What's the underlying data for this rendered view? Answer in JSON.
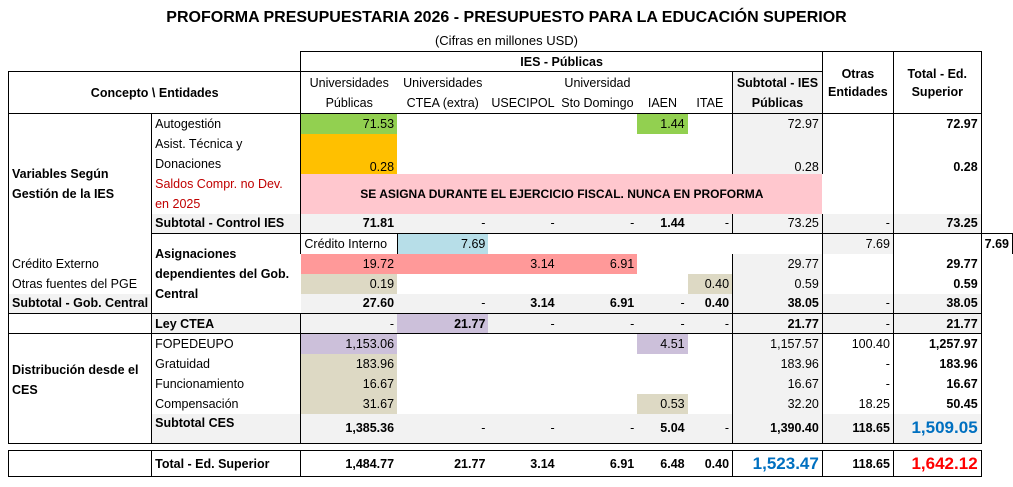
{
  "title": "PROFORMA PRESUPUESTARIA 2026 - PRESUPUESTO PARA LA EDUCACIÓN SUPERIOR",
  "subtitle": "(Cifras en millones USD)",
  "headers": {
    "group_ies": "IES - Públicas",
    "concepto": "Concepto \\ Entidades",
    "univ_publicas": "Universidades Públicas",
    "univ_ctea": "Universidades CTEA (extra)",
    "usecipol": "USECIPOL",
    "univ_sto": "Universidad Sto Domingo",
    "iaen": "IAEN",
    "itae": "ITAE",
    "subtotal_ies": "Subtotal - IES Públicas",
    "otras": "Otras Entidades",
    "total": "Total - Ed. Superior"
  },
  "groups": {
    "g1": "Variables Según Gestión de la IES",
    "g2": "Asignaciones dependientes del Gob. Central",
    "g4": "Distribución desde el CES"
  },
  "rows": {
    "autogestion": {
      "label": "Autogestión",
      "univ": "71.53",
      "iaen": "1.44",
      "sub": "72.97",
      "total": "72.97"
    },
    "asist": {
      "label": "Asist. Técnica y Donaciones",
      "univ": "0.28",
      "sub": "0.28",
      "total": "0.28"
    },
    "saldos": {
      "label": "Saldos Compr. no Dev. en 2025",
      "note": "SE ASIGNA DURANTE EL EJERCICIO FISCAL. NUNCA EN PROFORMA"
    },
    "sub_control": {
      "label": "Subtotal - Control IES",
      "univ": "71.81",
      "ctea": "-",
      "usec": "-",
      "sto": "-",
      "iaen": "1.44",
      "itae": "-",
      "sub": "73.25",
      "otras": "-",
      "total": "73.25"
    },
    "credito_int": {
      "label": "Crédito Interno",
      "univ": "7.69",
      "sub": "7.69",
      "total": "7.69"
    },
    "credito_ext": {
      "label": "Crédito Externo",
      "univ": "19.72",
      "usec": "3.14",
      "sto": "6.91",
      "sub": "29.77",
      "total": "29.77"
    },
    "otras_pge": {
      "label": "Otras fuentes del PGE",
      "univ": "0.19",
      "itae": "0.40",
      "sub": "0.59",
      "total": "0.59"
    },
    "sub_gob": {
      "label": "Subtotal - Gob. Central",
      "univ": "27.60",
      "ctea": "-",
      "usec": "3.14",
      "sto": "6.91",
      "iaen": "-",
      "itae": "0.40",
      "sub": "38.05",
      "otras": "-",
      "total": "38.05"
    },
    "ley_ctea": {
      "label": "Ley CTEA",
      "univ": "-",
      "ctea": "21.77",
      "usec": "-",
      "sto": "-",
      "iaen": "-",
      "itae": "-",
      "sub": "21.77",
      "otras": "-",
      "total": "21.77"
    },
    "fopedeupo": {
      "label": "FOPEDEUPO",
      "univ": "1,153.06",
      "iaen": "4.51",
      "sub": "1,157.57",
      "otras": "100.40",
      "total": "1,257.97"
    },
    "gratuidad": {
      "label": "Gratuidad",
      "univ": "183.96",
      "sub": "183.96",
      "otras": "-",
      "total": "183.96"
    },
    "funcionamiento": {
      "label": "Funcionamiento",
      "univ": "16.67",
      "sub": "16.67",
      "otras": "-",
      "total": "16.67"
    },
    "compensacion": {
      "label": "Compensación",
      "univ": "31.67",
      "iaen": "0.53",
      "sub": "32.20",
      "otras": "18.25",
      "total": "50.45"
    },
    "sub_ces": {
      "label": "Subtotal CES",
      "univ": "1,385.36",
      "ctea": "-",
      "usec": "-",
      "sto": "-",
      "iaen": "5.04",
      "itae": "-",
      "sub": "1,390.40",
      "otras": "118.65",
      "total": "1,509.05"
    },
    "total_ed": {
      "label": "Total - Ed. Superior",
      "univ": "1,484.77",
      "ctea": "21.77",
      "usec": "3.14",
      "sto": "6.91",
      "iaen": "6.48",
      "itae": "0.40",
      "sub": "1,523.47",
      "otras": "118.65",
      "total": "1,642.12"
    }
  },
  "colors": {
    "green": "#92d050",
    "orange": "#ffc000",
    "pink": "#ffc7ce",
    "blue": "#b7dee8",
    "red": "#ff9999",
    "purple": "#ccc0da",
    "beige": "#ddd9c4",
    "subtotal_bg": "#f2f2f2",
    "highlight_blue_text": "#0070c0",
    "highlight_red_text": "#ff0000"
  }
}
